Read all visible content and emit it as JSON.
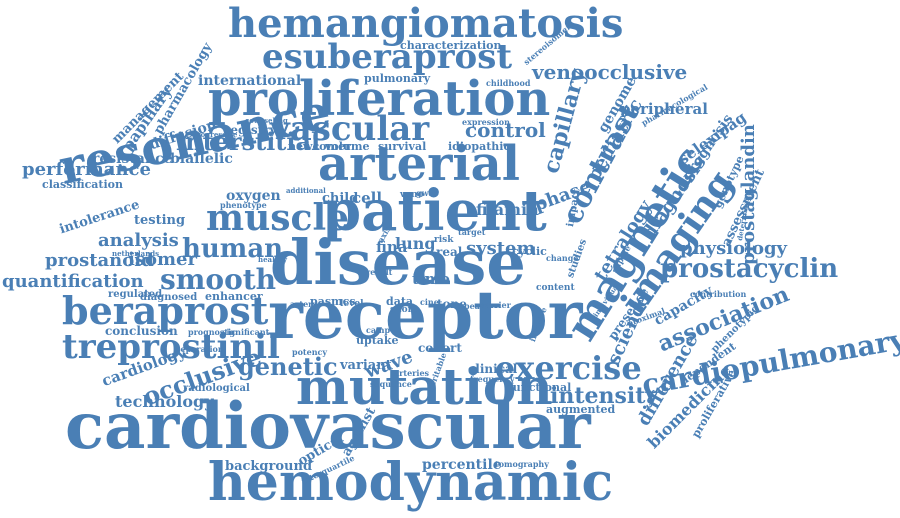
{
  "color": "#4a7fb5",
  "words": [
    {
      "id": "cardiovascular",
      "text": "cardiovascular",
      "weight": 10
    },
    {
      "id": "hemodynamic",
      "text": "hemodynamic",
      "weight": 8
    },
    {
      "id": "receptor",
      "text": "receptor",
      "weight": 10
    },
    {
      "id": "disease",
      "text": "disease",
      "weight": 10
    },
    {
      "id": "patient",
      "text": "patient",
      "weight": 9
    },
    {
      "id": "arterial",
      "text": "arterial",
      "weight": 8
    },
    {
      "id": "resonance",
      "text": "resonance",
      "weight": 8
    },
    {
      "id": "mutation",
      "text": "mutation",
      "weight": 8
    },
    {
      "id": "proliferation",
      "text": "proliferation",
      "weight": 8
    },
    {
      "id": "hemangiomatosis",
      "text": "hemangiomatosis",
      "weight": 7
    },
    {
      "id": "esuberaprost",
      "text": "esuberaprost",
      "weight": 6
    },
    {
      "id": "vascular",
      "text": "vascular",
      "weight": 6
    },
    {
      "id": "muscle",
      "text": "muscle",
      "weight": 6
    },
    {
      "id": "magnetic",
      "text": "magnetic",
      "weight": 6
    },
    {
      "id": "beraprost",
      "text": "beraprost",
      "weight": 6
    },
    {
      "id": "treprostinil",
      "text": "treprostinil",
      "weight": 5
    },
    {
      "id": "exercise",
      "text": "exercise",
      "weight": 5
    },
    {
      "id": "smooth",
      "text": "smooth",
      "weight": 5
    },
    {
      "id": "cardiopulmonary",
      "text": "cardiopulmonary",
      "weight": 4
    },
    {
      "id": "imaging",
      "text": "imaging",
      "weight": 5
    },
    {
      "id": "human",
      "text": "human",
      "weight": 4
    },
    {
      "id": "genetic",
      "text": "genetic",
      "weight": 4
    },
    {
      "id": "occlusive",
      "text": "occlusive",
      "weight": 4
    },
    {
      "id": "interstitial",
      "text": "interstitial",
      "weight": 4
    },
    {
      "id": "contrast",
      "text": "contrast",
      "weight": 4
    },
    {
      "id": "prostacyclin",
      "text": "prostacyclin",
      "weight": 4
    },
    {
      "id": "venoocclusive",
      "text": "venoocclusive",
      "weight": 3
    },
    {
      "id": "intensity",
      "text": "intensity",
      "weight": 3
    },
    {
      "id": "association",
      "text": "association",
      "weight": 3
    },
    {
      "id": "capillary",
      "text": "capillary",
      "weight": 3
    },
    {
      "id": "control",
      "text": "control",
      "weight": 3
    },
    {
      "id": "prostanoid",
      "text": "prostanoid",
      "weight": 3
    },
    {
      "id": "isomer",
      "text": "isomer",
      "weight": 3
    },
    {
      "id": "quantification",
      "text": "quantification",
      "weight": 3
    },
    {
      "id": "analysis",
      "text": "analysis",
      "weight": 3
    },
    {
      "id": "performance",
      "text": "performance",
      "weight": 3
    },
    {
      "id": "filamin",
      "text": "filamin",
      "weight": 2
    },
    {
      "id": "physiology",
      "text": "physiology",
      "weight": 3
    },
    {
      "id": "prostaglandin",
      "text": "prostaglandin",
      "weight": 3
    },
    {
      "id": "tetralogy",
      "text": "tetralogy",
      "weight": 3
    },
    {
      "id": "diagnosis",
      "text": "diagnosis",
      "weight": 3
    },
    {
      "id": "pediatric",
      "text": "pediatric",
      "weight": 3
    },
    {
      "id": "phase",
      "text": "phase",
      "weight": 3
    },
    {
      "id": "science",
      "text": "science",
      "weight": 3
    },
    {
      "id": "difference",
      "text": "difference",
      "weight": 3
    },
    {
      "id": "biomedicine",
      "text": "biomedicine",
      "weight": 2
    },
    {
      "id": "technology",
      "text": "technology",
      "weight": 2
    },
    {
      "id": "cardiology",
      "text": "cardiology",
      "weight": 2
    },
    {
      "id": "peripheral",
      "text": "peripheral",
      "weight": 2
    },
    {
      "id": "system",
      "text": "system",
      "weight": 3
    },
    {
      "id": "international",
      "text": "international",
      "weight": 2
    },
    {
      "id": "oxygen",
      "text": "oxygen",
      "weight": 2
    },
    {
      "id": "cell",
      "text": "cell",
      "weight": 2
    },
    {
      "id": "child",
      "text": "child",
      "weight": 2
    },
    {
      "id": "wave",
      "text": "wave",
      "weight": 2
    },
    {
      "id": "variant",
      "text": "variant",
      "weight": 2
    },
    {
      "id": "percentile",
      "text": "percentile",
      "weight": 2
    },
    {
      "id": "background",
      "text": "background",
      "weight": 2
    },
    {
      "id": "optical",
      "text": "optical",
      "weight": 2
    },
    {
      "id": "agonist",
      "text": "agonist",
      "weight": 2
    },
    {
      "id": "resistance",
      "text": "resistance",
      "weight": 2
    },
    {
      "id": "biallelic",
      "text": "biallelic",
      "weight": 2
    },
    {
      "id": "diffusion",
      "text": "diffusion",
      "weight": 2
    },
    {
      "id": "papillary",
      "text": "papillary",
      "weight": 2
    },
    {
      "id": "management",
      "text": "management",
      "weight": 2
    },
    {
      "id": "pharmacology",
      "text": "pharmacology",
      "weight": 2
    },
    {
      "id": "characterization",
      "text": "characterization",
      "weight": 2
    },
    {
      "id": "pulmonary",
      "text": "pulmonary",
      "weight": 1
    },
    {
      "id": "survival",
      "text": "survival",
      "weight": 1
    },
    {
      "id": "volume",
      "text": "volume",
      "weight": 1
    },
    {
      "id": "newcomer",
      "text": "newcomer",
      "weight": 1
    },
    {
      "id": "registry",
      "text": "registry",
      "weight": 2
    },
    {
      "id": "idiopathic",
      "text": "idiopathic",
      "weight": 1
    },
    {
      "id": "testing",
      "text": "testing",
      "weight": 2
    },
    {
      "id": "intolerance",
      "text": "intolerance",
      "weight": 2
    },
    {
      "id": "classification",
      "text": "classification",
      "weight": 1
    },
    {
      "id": "regulated",
      "text": "regulated",
      "weight": 1
    },
    {
      "id": "diagnosed",
      "text": "diagnosed",
      "weight": 1
    },
    {
      "id": "enhancer",
      "text": "enhancer",
      "weight": 1
    },
    {
      "id": "conclusion",
      "text": "conclusion",
      "weight": 2
    },
    {
      "id": "radiological",
      "text": "radiological",
      "weight": 1
    },
    {
      "id": "lung",
      "text": "lung",
      "weight": 2
    },
    {
      "id": "fina",
      "text": "fina",
      "weight": 2
    },
    {
      "id": "time",
      "text": "time",
      "weight": 2
    },
    {
      "id": "real",
      "text": "real",
      "weight": 1
    },
    {
      "id": "tone",
      "text": "tone",
      "weight": 1
    },
    {
      "id": "cohort",
      "text": "cohort",
      "weight": 1
    },
    {
      "id": "clinical",
      "text": "clinical",
      "weight": 1
    },
    {
      "id": "uptake",
      "text": "uptake",
      "weight": 1
    },
    {
      "id": "functional",
      "text": "functional",
      "weight": 1
    },
    {
      "id": "augmented",
      "text": "augmented",
      "weight": 1
    },
    {
      "id": "genome",
      "text": "genome",
      "weight": 2
    },
    {
      "id": "selexipag",
      "text": "selexipag",
      "weight": 2
    },
    {
      "id": "prognosis",
      "text": "prognosis",
      "weight": 2
    },
    {
      "id": "genotype",
      "text": "genotype",
      "weight": 1
    },
    {
      "id": "assessment",
      "text": "assessment",
      "weight": 2
    },
    {
      "id": "capacity",
      "text": "capacity",
      "weight": 2
    },
    {
      "id": "presence",
      "text": "presence",
      "weight": 1
    },
    {
      "id": "proliferative",
      "text": "proliferative",
      "weight": 1
    },
    {
      "id": "dependent",
      "text": "dependent",
      "weight": 1
    },
    {
      "id": "phenotypic",
      "text": "phenotypic",
      "weight": 1
    },
    {
      "id": "cyclic",
      "text": "cyclic",
      "weight": 1
    },
    {
      "id": "pasmcs",
      "text": "pasmcs",
      "weight": 1
    },
    {
      "id": "data",
      "text": "data",
      "weight": 1
    },
    {
      "id": "expression",
      "text": "expression",
      "weight": 1
    },
    {
      "id": "childhood",
      "text": "childhood",
      "weight": 1
    },
    {
      "id": "stereoisomer",
      "text": "stereoisomer",
      "weight": 1
    },
    {
      "id": "content",
      "text": "content",
      "weight": 1
    },
    {
      "id": "sequence",
      "text": "sequence",
      "weight": 1
    },
    {
      "id": "arteries",
      "text": "arteries",
      "weight": 1
    },
    {
      "id": "interquartile",
      "text": "interquartile",
      "weight": 1
    },
    {
      "id": "tomography",
      "text": "tomography",
      "weight": 1
    },
    {
      "id": "frequency",
      "text": "frequency",
      "weight": 1
    },
    {
      "id": "level",
      "text": "level",
      "weight": 1
    },
    {
      "id": "short",
      "text": "short",
      "weight": 1
    },
    {
      "id": "peak",
      "text": "peak",
      "weight": 1
    },
    {
      "id": "carrier",
      "text": "carrier",
      "weight": 1
    },
    {
      "id": "studies",
      "text": "studies",
      "weight": 1
    },
    {
      "id": "impact",
      "text": "impact",
      "weight": 1
    },
    {
      "id": "potency",
      "text": "potency",
      "weight": 1
    },
    {
      "id": "separation",
      "text": "separation",
      "weight": 1
    },
    {
      "id": "prognostic",
      "text": "prognostic",
      "weight": 1
    },
    {
      "id": "significant",
      "text": "significant",
      "weight": 1
    },
    {
      "id": "phenotype",
      "text": "phenotype",
      "weight": 1
    },
    {
      "id": "netherlands",
      "text": "netherlands",
      "weight": 1
    },
    {
      "id": "healthy",
      "text": "healthy",
      "weight": 1
    },
    {
      "id": "artery",
      "text": "artery",
      "weight": 1
    },
    {
      "id": "result",
      "text": "result",
      "weight": 1
    },
    {
      "id": "progressive",
      "text": "progressive",
      "weight": 1
    },
    {
      "id": "counseling",
      "text": "counseling",
      "weight": 1
    },
    {
      "id": "pharmacological",
      "text": "pharmacological",
      "weight": 1
    },
    {
      "id": "proximal",
      "text": "proximal",
      "weight": 1
    },
    {
      "id": "individual",
      "text": "individual",
      "weight": 1
    },
    {
      "id": "contribution",
      "text": "contribution",
      "weight": 1
    },
    {
      "id": "determinant",
      "text": "determinant",
      "weight": 1
    },
    {
      "id": "risk",
      "text": "risk",
      "weight": 1
    },
    {
      "id": "cine",
      "text": "cine",
      "weight": 1
    },
    {
      "id": "heritable",
      "text": "heritable",
      "weight": 1
    },
    {
      "id": "veno",
      "text": "veno",
      "weight": 1
    },
    {
      "id": "gwas",
      "text": "gwas",
      "weight": 1
    },
    {
      "id": "camp",
      "text": "camp",
      "weight": 1
    },
    {
      "id": "axis",
      "text": "axis",
      "weight": 1
    },
    {
      "id": "additional",
      "text": "additional",
      "weight": 1
    },
    {
      "id": "supine",
      "text": "supine",
      "weight": 1
    },
    {
      "id": "invasive",
      "text": "invasive",
      "weight": 1
    },
    {
      "id": "target",
      "text": "target",
      "weight": 1
    },
    {
      "id": "change",
      "text": "change",
      "weight": 1
    }
  ]
}
